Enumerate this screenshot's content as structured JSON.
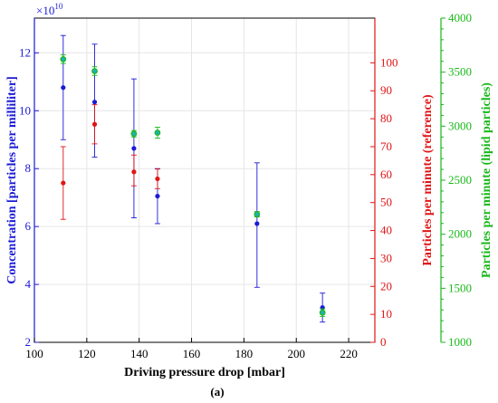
{
  "chart_data": {
    "type": "scatter",
    "panel_label": "(a)",
    "x_axis": {
      "label": "Driving pressure drop [mbar]",
      "range": [
        100,
        230
      ],
      "ticks": [
        100,
        120,
        140,
        160,
        180,
        200,
        220
      ]
    },
    "y_left": {
      "label": "Concentration [particles per milliliter]",
      "multiplier_label": "×10",
      "multiplier_exp": "10",
      "range": [
        2,
        13.2
      ],
      "ticks": [
        2,
        4,
        6,
        8,
        10,
        12
      ],
      "color": "#1a1ad6"
    },
    "y_right1": {
      "label": "Particles per minute (reference)",
      "range": [
        0,
        116
      ],
      "ticks": [
        0,
        10,
        20,
        30,
        40,
        50,
        60,
        70,
        80,
        90,
        100
      ],
      "color": "#e01414"
    },
    "y_right2": {
      "label": "Particles per minute (lipid particles)",
      "range": [
        1000,
        4000
      ],
      "ticks": [
        1000,
        1500,
        2000,
        2500,
        3000,
        3500,
        4000
      ],
      "color": "#18b818"
    },
    "series": [
      {
        "axis": "left",
        "color": "#1a1ad6",
        "marker": "dot",
        "points": [
          {
            "x": 111,
            "y": 10.8,
            "lo": 9.0,
            "hi": 12.6
          },
          {
            "x": 123,
            "y": 10.3,
            "lo": 8.4,
            "hi": 12.3
          },
          {
            "x": 138,
            "y": 8.7,
            "lo": 6.3,
            "hi": 11.1
          },
          {
            "x": 147,
            "y": 7.05,
            "lo": 6.1,
            "hi": 8.0
          },
          {
            "x": 185,
            "y": 6.1,
            "lo": 3.9,
            "hi": 8.2
          },
          {
            "x": 210,
            "y": 3.2,
            "lo": 2.7,
            "hi": 3.7
          }
        ]
      },
      {
        "axis": "right1",
        "color": "#e01414",
        "marker": "dot",
        "points": [
          {
            "x": 111,
            "y": 57,
            "lo": 44,
            "hi": 70
          },
          {
            "x": 123,
            "y": 78,
            "lo": 71,
            "hi": 85
          },
          {
            "x": 138,
            "y": 61,
            "lo": 56,
            "hi": 67
          },
          {
            "x": 147,
            "y": 58.5,
            "lo": 55,
            "hi": 62
          }
        ]
      },
      {
        "axis": "right2",
        "color": "#18b818",
        "marker": "ring",
        "fill": "#20b0b0",
        "points": [
          {
            "x": 111,
            "y": 3620,
            "lo": 3580,
            "hi": 3660
          },
          {
            "x": 123,
            "y": 3510,
            "lo": 3470,
            "hi": 3550
          },
          {
            "x": 138,
            "y": 2930,
            "lo": 2900,
            "hi": 2960
          },
          {
            "x": 147,
            "y": 2940,
            "lo": 2890,
            "hi": 2990
          },
          {
            "x": 185,
            "y": 2185,
            "lo": 2160,
            "hi": 2210
          },
          {
            "x": 210,
            "y": 1275,
            "lo": 1240,
            "hi": 1310
          }
        ]
      }
    ]
  }
}
